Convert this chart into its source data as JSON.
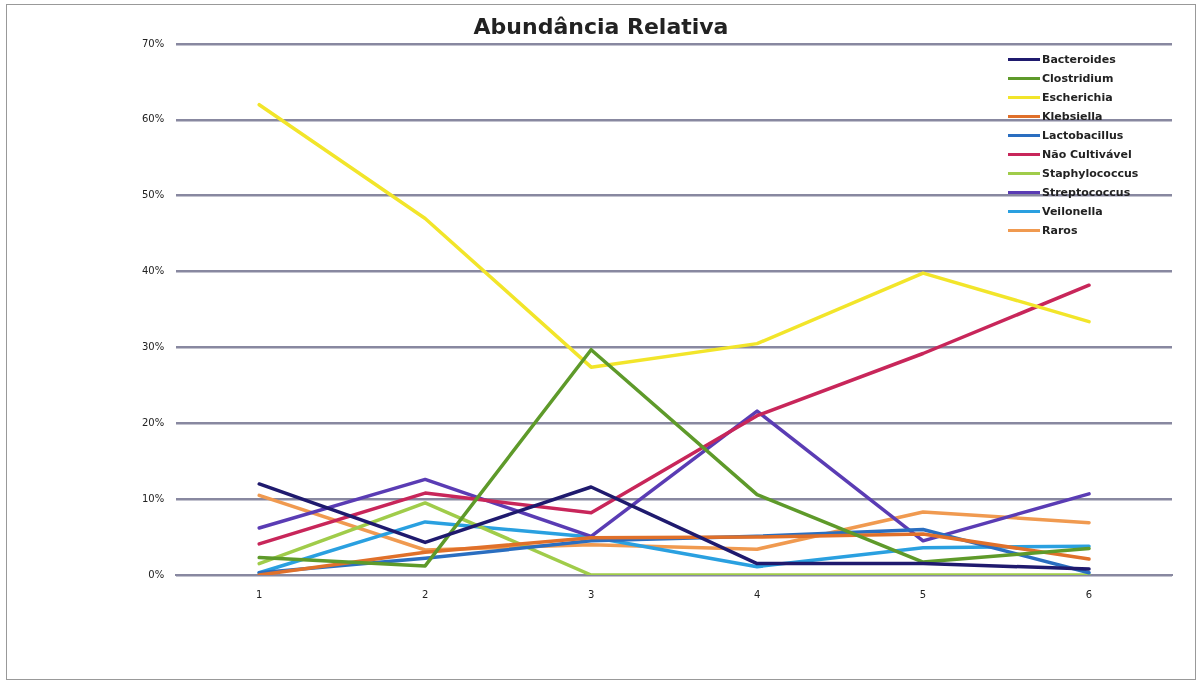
{
  "chart_data": {
    "type": "line",
    "title": "Abundância Relativa",
    "categories": [
      "1",
      "2",
      "3",
      "4",
      "5",
      "6"
    ],
    "series": [
      {
        "name": "Bacteroides",
        "color": "#1f1a6e",
        "values": [
          12.0,
          4.3,
          11.6,
          1.5,
          1.5,
          0.8
        ]
      },
      {
        "name": "Clostridium",
        "color": "#5e9a2a",
        "values": [
          2.3,
          1.2,
          29.7,
          10.6,
          1.7,
          3.5
        ]
      },
      {
        "name": "Escherichia",
        "color": "#f2e52a",
        "values": [
          62.0,
          47.0,
          27.4,
          30.5,
          39.8,
          33.4
        ]
      },
      {
        "name": "Klebsiella",
        "color": "#e0702a",
        "values": [
          0.0,
          3.0,
          4.9,
          5.0,
          5.4,
          2.1
        ]
      },
      {
        "name": "Lactobacillus",
        "color": "#2a6ec0",
        "values": [
          0.3,
          2.2,
          4.5,
          5.1,
          6.0,
          0.3
        ]
      },
      {
        "name": "Não Cultivável",
        "color": "#c8265a",
        "values": [
          4.1,
          10.8,
          8.2,
          21.0,
          29.2,
          38.2
        ]
      },
      {
        "name": "Staphylococcus",
        "color": "#a0cc4a",
        "values": [
          1.5,
          9.5,
          0.0,
          0.0,
          0.0,
          0.0
        ]
      },
      {
        "name": "Streptococcus",
        "color": "#5a3cb4",
        "values": [
          6.2,
          12.6,
          5.1,
          21.6,
          4.5,
          10.7
        ]
      },
      {
        "name": "Veilonella",
        "color": "#2aa0e0",
        "values": [
          0.3,
          7.0,
          5.0,
          1.1,
          3.6,
          3.8
        ]
      },
      {
        "name": "Raros",
        "color": "#f09a50",
        "values": [
          10.5,
          3.3,
          4.0,
          3.4,
          8.3,
          6.9
        ]
      }
    ],
    "ylim": [
      0,
      70
    ],
    "yticks": [
      {
        "value": 0,
        "label": "0%"
      },
      {
        "value": 10,
        "label": "10%"
      },
      {
        "value": 20,
        "label": "20%"
      },
      {
        "value": 30,
        "label": "30%"
      },
      {
        "value": 40,
        "label": "40%"
      },
      {
        "value": 50,
        "label": "50%"
      },
      {
        "value": 60,
        "label": "60%"
      },
      {
        "value": 70,
        "label": "70%"
      }
    ],
    "grid": "y",
    "legend": "top right",
    "marker": "none",
    "line_style": "solid"
  }
}
